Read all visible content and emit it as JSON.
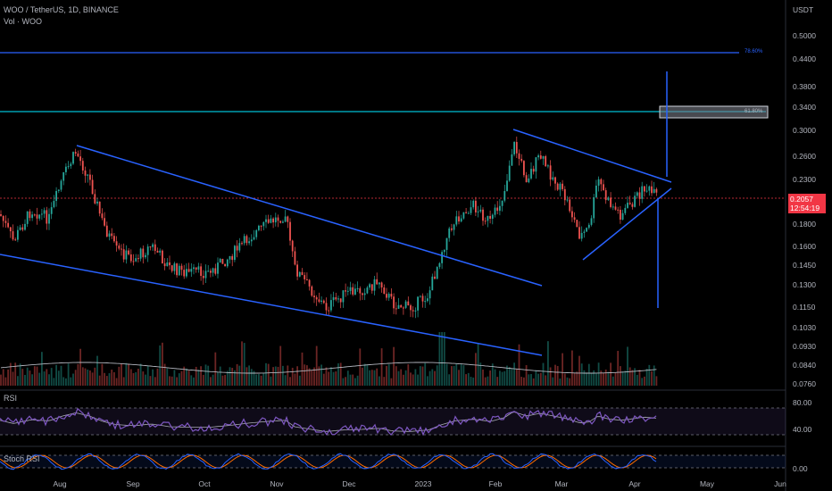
{
  "header": {
    "symbol_line": "WOO / TetherUS, 1D, BINANCE",
    "volume_line": "Vol · WOO",
    "currency": "USDT"
  },
  "price_axis": {
    "labels": [
      "0.5000",
      "0.4400",
      "0.3800",
      "0.3400",
      "0.3000",
      "0.2600",
      "0.2300",
      "0.1800",
      "0.1600",
      "0.1450",
      "0.1300",
      "0.1150",
      "0.1030",
      "0.0930",
      "0.0840",
      "0.0760"
    ]
  },
  "current_price": {
    "value": "0.2057",
    "countdown": "12:54:19"
  },
  "fib_levels": [
    {
      "label": "78.60%",
      "color": "#2962ff"
    },
    {
      "label": "61.80%",
      "color": "#00bcd4"
    }
  ],
  "rsi_pane": {
    "label": "RSI",
    "levels": [
      "80.00",
      "40.00"
    ]
  },
  "stoch_pane": {
    "label": "Stoch RSI",
    "levels": [
      "0.00"
    ]
  },
  "time_axis": {
    "labels": [
      "Aug",
      "Sep",
      "Oct",
      "Nov",
      "Dec",
      "2023",
      "Feb",
      "Mar",
      "Apr",
      "May",
      "Jun"
    ]
  },
  "colors": {
    "up": "#26a69a",
    "down": "#ef5350",
    "trendline": "#2962ff",
    "rsi": "#7e57c2",
    "stoch_k": "#2962ff",
    "stoch_d": "#ff6d00",
    "background": "#000000"
  }
}
